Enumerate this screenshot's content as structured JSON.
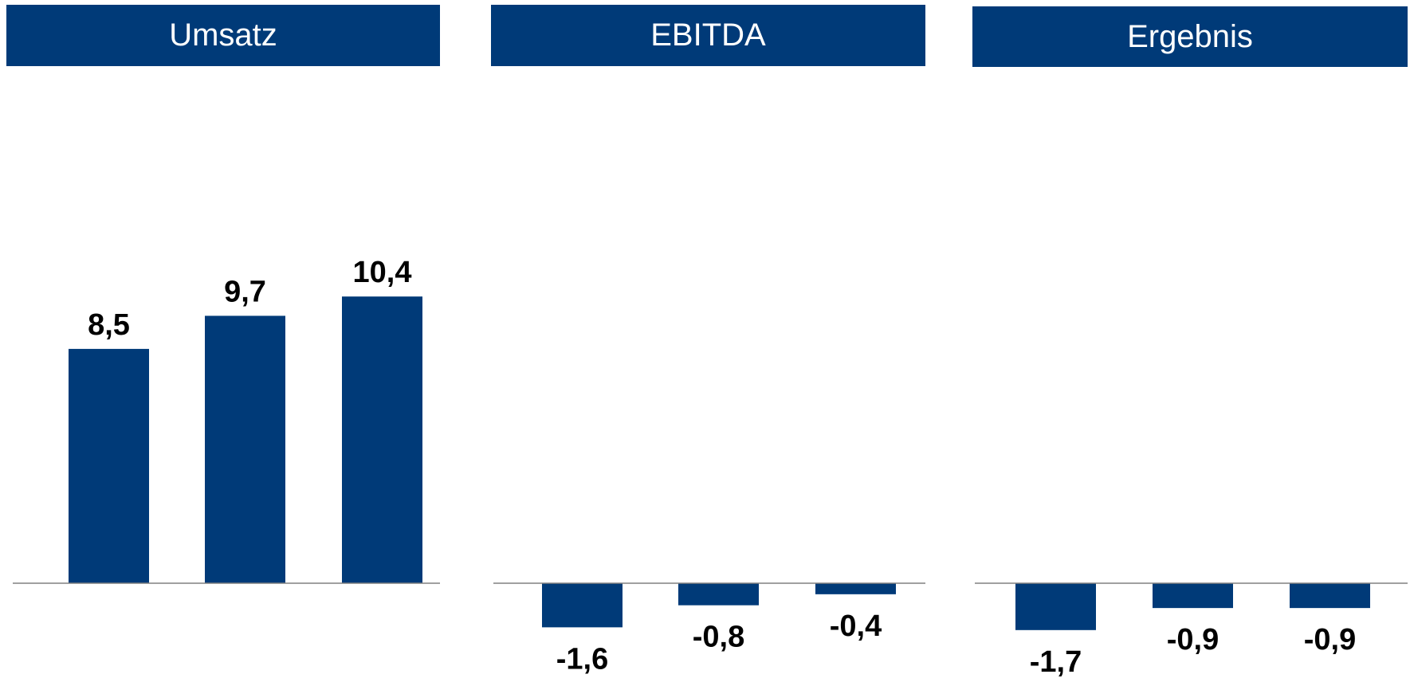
{
  "theme": {
    "bar_color": "#003a78",
    "header_bg": "#003a78",
    "header_text": "#ffffff",
    "label_color": "#000000",
    "axis_color": "#808080"
  },
  "chart_data": [
    {
      "type": "bar",
      "title": "Umsatz",
      "values": [
        8.5,
        9.7,
        10.4
      ],
      "labels": [
        "8,5",
        "9,7",
        "10,4"
      ]
    },
    {
      "type": "bar",
      "title": "EBITDA",
      "values": [
        -1.6,
        -0.8,
        -0.4
      ],
      "labels": [
        "-1,6",
        "-0,8",
        "-0,4"
      ]
    },
    {
      "type": "bar",
      "title": "Ergebnis",
      "values": [
        -1.7,
        -0.9,
        -0.9
      ],
      "labels": [
        "-1,7",
        "-0,9",
        "-0,9"
      ]
    }
  ]
}
